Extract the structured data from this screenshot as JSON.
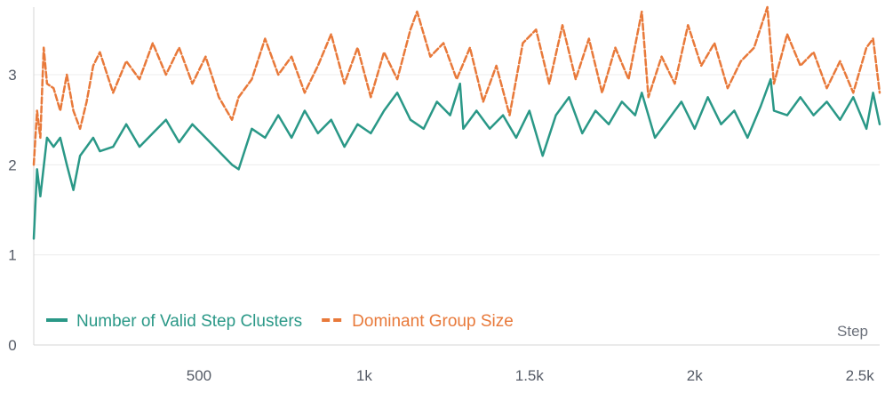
{
  "chart_data": {
    "type": "line",
    "title": "",
    "xlabel": "Step",
    "ylabel": "",
    "xlim": [
      0,
      2560
    ],
    "ylim": [
      0,
      3.75
    ],
    "x_ticks": [
      500,
      1000,
      1500,
      2000,
      2500
    ],
    "x_tick_labels": [
      "500",
      "1k",
      "1.5k",
      "2k",
      "2.5k"
    ],
    "y_ticks": [
      0,
      1,
      2,
      3
    ],
    "y_tick_labels": [
      "0",
      "1",
      "2",
      "3"
    ],
    "grid": "horizontal",
    "legend_position": "bottom-left",
    "series": [
      {
        "name": "Number of Valid Step Clusters",
        "color": "#2a9887",
        "style": "solid",
        "x": [
          0,
          10,
          20,
          40,
          60,
          80,
          100,
          120,
          140,
          160,
          180,
          200,
          240,
          280,
          320,
          360,
          400,
          440,
          480,
          520,
          560,
          600,
          620,
          660,
          700,
          740,
          780,
          820,
          860,
          900,
          940,
          980,
          1020,
          1060,
          1100,
          1140,
          1180,
          1220,
          1260,
          1290,
          1300,
          1340,
          1380,
          1420,
          1460,
          1500,
          1540,
          1580,
          1620,
          1660,
          1700,
          1740,
          1780,
          1820,
          1840,
          1880,
          1920,
          1960,
          2000,
          2040,
          2080,
          2120,
          2160,
          2200,
          2230,
          2240,
          2280,
          2320,
          2360,
          2400,
          2440,
          2480,
          2520,
          2540,
          2560
        ],
        "values": [
          1.18,
          1.95,
          1.65,
          2.3,
          2.2,
          2.3,
          2.0,
          1.72,
          2.1,
          2.2,
          2.3,
          2.15,
          2.2,
          2.45,
          2.2,
          2.35,
          2.5,
          2.25,
          2.45,
          2.3,
          2.15,
          2.0,
          1.95,
          2.4,
          2.3,
          2.55,
          2.3,
          2.6,
          2.35,
          2.5,
          2.2,
          2.45,
          2.35,
          2.6,
          2.8,
          2.5,
          2.4,
          2.7,
          2.55,
          2.9,
          2.4,
          2.6,
          2.4,
          2.55,
          2.3,
          2.6,
          2.1,
          2.55,
          2.75,
          2.35,
          2.6,
          2.45,
          2.7,
          2.55,
          2.8,
          2.3,
          2.5,
          2.7,
          2.4,
          2.75,
          2.45,
          2.6,
          2.3,
          2.65,
          2.95,
          2.6,
          2.55,
          2.75,
          2.55,
          2.7,
          2.5,
          2.75,
          2.4,
          2.8,
          2.45
        ]
      },
      {
        "name": "Dominant Group Size",
        "color": "#e8793a",
        "style": "dashed",
        "x": [
          0,
          10,
          20,
          30,
          40,
          60,
          80,
          100,
          120,
          140,
          160,
          180,
          200,
          240,
          280,
          320,
          360,
          400,
          440,
          480,
          520,
          560,
          600,
          620,
          660,
          700,
          740,
          780,
          820,
          860,
          900,
          940,
          980,
          1020,
          1060,
          1100,
          1140,
          1160,
          1200,
          1240,
          1280,
          1320,
          1360,
          1400,
          1440,
          1480,
          1520,
          1560,
          1600,
          1640,
          1680,
          1720,
          1760,
          1800,
          1840,
          1860,
          1900,
          1940,
          1980,
          2020,
          2060,
          2100,
          2140,
          2180,
          2220,
          2240,
          2280,
          2320,
          2360,
          2400,
          2440,
          2480,
          2520,
          2540,
          2560
        ],
        "values": [
          2.0,
          2.6,
          2.3,
          3.3,
          2.9,
          2.85,
          2.6,
          3.0,
          2.6,
          2.4,
          2.7,
          3.1,
          3.25,
          2.8,
          3.15,
          2.95,
          3.35,
          3.0,
          3.3,
          2.9,
          3.2,
          2.75,
          2.5,
          2.75,
          2.95,
          3.4,
          3.0,
          3.2,
          2.8,
          3.1,
          3.45,
          2.9,
          3.3,
          2.75,
          3.25,
          2.95,
          3.5,
          3.7,
          3.2,
          3.35,
          2.95,
          3.3,
          2.7,
          3.1,
          2.55,
          3.35,
          3.5,
          2.9,
          3.55,
          2.95,
          3.4,
          2.8,
          3.3,
          2.95,
          3.7,
          2.75,
          3.2,
          2.9,
          3.55,
          3.1,
          3.35,
          2.85,
          3.15,
          3.3,
          3.75,
          2.9,
          3.45,
          3.1,
          3.25,
          2.85,
          3.15,
          2.8,
          3.3,
          3.4,
          2.8
        ]
      }
    ]
  }
}
